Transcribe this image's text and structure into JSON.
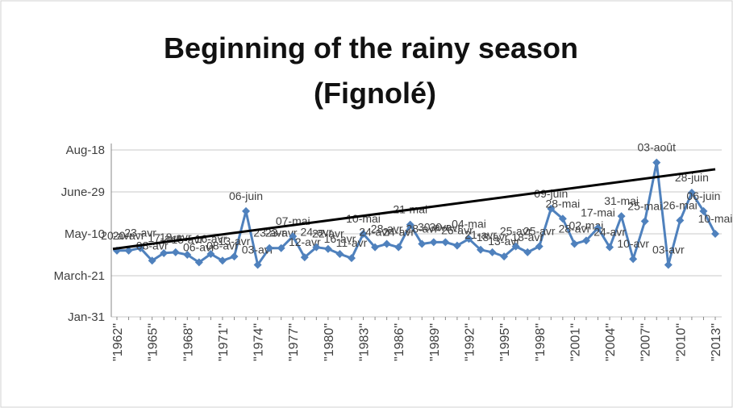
{
  "chart_data": {
    "type": "line",
    "title": [
      "Beginning of the rainy season",
      "(Fignolé)"
    ],
    "categories": [
      "\"1962\"",
      null,
      null,
      "\"1965\"",
      null,
      null,
      "\"1968\"",
      null,
      null,
      "\"1971\"",
      null,
      null,
      "\"1974\"",
      null,
      null,
      "\"1977\"",
      null,
      null,
      "\"1980\"",
      null,
      null,
      "\"1983\"",
      null,
      null,
      "\"1986\"",
      null,
      null,
      "\"1989\"",
      null,
      null,
      "\"1992\"",
      null,
      null,
      "\"1995\"",
      null,
      null,
      "\"1998\"",
      null,
      null,
      "\"2001\"",
      null,
      null,
      "\"2004\"",
      null,
      null,
      "\"2007\"",
      null,
      null,
      "\"2010\"",
      null,
      null,
      "\"2013\""
    ],
    "series": [
      {
        "color": "#4f81bd",
        "values": [
          110,
          110,
          113,
          98,
          107,
          108,
          105,
          96,
          106,
          98,
          103,
          157,
          93,
          113,
          113,
          127,
          102,
          114,
          112,
          106,
          101,
          130,
          114,
          118,
          114,
          141,
          118,
          120,
          120,
          116,
          124,
          111,
          108,
          103,
          115,
          108,
          115,
          160,
          148,
          118,
          122,
          137,
          114,
          151,
          100,
          145,
          215,
          93,
          146,
          179,
          157,
          130
        ],
        "value_labels": [
          "20-avr",
          "20-avr",
          "23-avr",
          "08-avr",
          "17-avr",
          "18-avr",
          "15-avr",
          "06-avr",
          "16-avr",
          "08-avr",
          "13-avr",
          "06-juin",
          "03-avr",
          "23-avr",
          "23-avr",
          "07-mai",
          "12-avr",
          "24-avr",
          "22-avr",
          "16-avr",
          "11-avr",
          "10-mai",
          "24-avr",
          "28-avr",
          "24-avr",
          "21-mai",
          "28-avr",
          "30-avr",
          "30-avr",
          "26-avr",
          "04-mai",
          "21-avr",
          "18-avr",
          "13-avr",
          "25-avr",
          "18-avr",
          "25-avr",
          "09-juin",
          "28-mai",
          "28-avr",
          "02-mai",
          "17-mai",
          "24-avr",
          "31-mai",
          "10-avr",
          "25-mai",
          "03-août",
          "03-avr",
          "26-mai",
          "28-juin",
          "06-juin",
          "10-mai"
        ]
      }
    ],
    "trendline": [
      112,
      207
    ],
    "trend_color": "#000000",
    "ylim": [
      31,
      230
    ],
    "yticks": [
      {
        "value": 31,
        "label": "Jan-31"
      },
      {
        "value": 80,
        "label": "March-21"
      },
      {
        "value": 130,
        "label": "May-10"
      },
      {
        "value": 180,
        "label": "June-29"
      },
      {
        "value": 230,
        "label": "Aug-18"
      }
    ],
    "grid": true
  }
}
